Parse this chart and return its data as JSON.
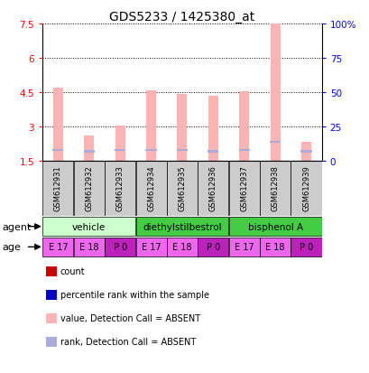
{
  "title": "GDS5233 / 1425380_at",
  "samples": [
    "GSM612931",
    "GSM612932",
    "GSM612933",
    "GSM612934",
    "GSM612935",
    "GSM612936",
    "GSM612937",
    "GSM612938",
    "GSM612939"
  ],
  "bar_values": [
    4.7,
    2.6,
    3.05,
    4.58,
    4.42,
    4.35,
    4.53,
    7.5,
    2.35
  ],
  "rank_values": [
    8,
    7,
    8,
    8,
    8,
    7,
    8,
    14,
    7
  ],
  "bar_color": "#ffb3b3",
  "rank_color": "#aaaadd",
  "ylim_left": [
    1.5,
    7.5
  ],
  "ylim_right": [
    0,
    100
  ],
  "yticks_left": [
    1.5,
    3.0,
    4.5,
    6.0,
    7.5
  ],
  "ytick_labels_left": [
    "1.5",
    "3",
    "4.5",
    "6",
    "7.5"
  ],
  "yticks_right": [
    0,
    25,
    50,
    75,
    100
  ],
  "ytick_labels_right": [
    "0",
    "25",
    "50",
    "75",
    "100%"
  ],
  "baseline": 1.5,
  "agent_groups": [
    {
      "label": "vehicle",
      "start": 0,
      "end": 3,
      "color": "#ccffcc"
    },
    {
      "label": "diethylstilbestrol",
      "start": 3,
      "end": 6,
      "color": "#44cc44"
    },
    {
      "label": "bisphenol A",
      "start": 6,
      "end": 9,
      "color": "#44cc44"
    }
  ],
  "age_labels": [
    "E 17",
    "E 18",
    "P 0",
    "E 17",
    "E 18",
    "P 0",
    "E 17",
    "E 18",
    "P 0"
  ],
  "age_colors": [
    "#ee66ee",
    "#ee66ee",
    "#bb22bb",
    "#ee66ee",
    "#ee66ee",
    "#bb22bb",
    "#ee66ee",
    "#ee66ee",
    "#bb22bb"
  ],
  "legend_items": [
    {
      "color": "#cc0000",
      "label": "count"
    },
    {
      "color": "#0000cc",
      "label": "percentile rank within the sample"
    },
    {
      "color": "#ffb3b3",
      "label": "value, Detection Call = ABSENT"
    },
    {
      "color": "#aaaadd",
      "label": "rank, Detection Call = ABSENT"
    }
  ],
  "agent_label": "agent",
  "age_label": "age"
}
